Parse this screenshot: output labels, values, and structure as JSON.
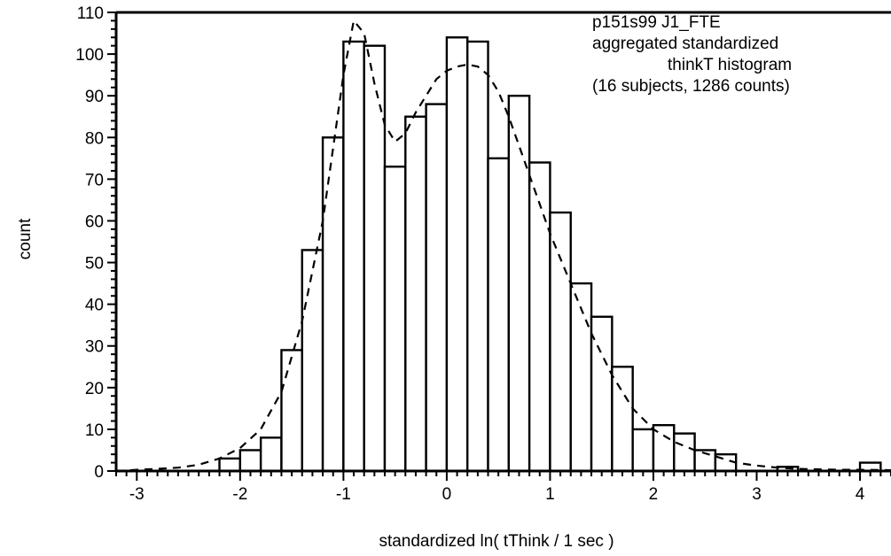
{
  "chart_data": {
    "type": "bar",
    "ylabel": "count",
    "xlabel": "standardized ln( tThink / 1 sec )",
    "annotation_lines": [
      "p151s99 J1_FTE",
      "aggregated standardized",
      "thinkT histogram",
      "(16 subjects, 1286 counts)"
    ],
    "xlim": [
      -3.2,
      4.3
    ],
    "ylim": [
      0,
      110
    ],
    "x_ticks": [
      -3,
      -2,
      -1,
      0,
      1,
      2,
      3,
      4
    ],
    "y_ticks": [
      0,
      10,
      20,
      30,
      40,
      50,
      60,
      70,
      80,
      90,
      100,
      110
    ],
    "bin_width": 0.2,
    "bins": [
      {
        "x0": -3.2,
        "count": 0
      },
      {
        "x0": -3.0,
        "count": 0
      },
      {
        "x0": -2.8,
        "count": 0
      },
      {
        "x0": -2.6,
        "count": 0
      },
      {
        "x0": -2.4,
        "count": 0
      },
      {
        "x0": -2.2,
        "count": 3
      },
      {
        "x0": -2.0,
        "count": 5
      },
      {
        "x0": -1.8,
        "count": 8
      },
      {
        "x0": -1.6,
        "count": 29
      },
      {
        "x0": -1.4,
        "count": 53
      },
      {
        "x0": -1.2,
        "count": 80
      },
      {
        "x0": -1.0,
        "count": 103
      },
      {
        "x0": -0.8,
        "count": 102
      },
      {
        "x0": -0.6,
        "count": 73
      },
      {
        "x0": -0.4,
        "count": 85
      },
      {
        "x0": -0.2,
        "count": 88
      },
      {
        "x0": 0.0,
        "count": 104
      },
      {
        "x0": 0.2,
        "count": 103
      },
      {
        "x0": 0.4,
        "count": 75
      },
      {
        "x0": 0.6,
        "count": 90
      },
      {
        "x0": 0.8,
        "count": 74
      },
      {
        "x0": 1.0,
        "count": 62
      },
      {
        "x0": 1.2,
        "count": 45
      },
      {
        "x0": 1.4,
        "count": 37
      },
      {
        "x0": 1.6,
        "count": 25
      },
      {
        "x0": 1.8,
        "count": 10
      },
      {
        "x0": 2.0,
        "count": 11
      },
      {
        "x0": 2.2,
        "count": 9
      },
      {
        "x0": 2.4,
        "count": 5
      },
      {
        "x0": 2.6,
        "count": 4
      },
      {
        "x0": 2.8,
        "count": 0
      },
      {
        "x0": 3.0,
        "count": 0
      },
      {
        "x0": 3.2,
        "count": 1
      },
      {
        "x0": 3.4,
        "count": 0
      },
      {
        "x0": 3.6,
        "count": 0
      },
      {
        "x0": 3.8,
        "count": 0
      },
      {
        "x0": 4.0,
        "count": 2
      },
      {
        "x0": 4.2,
        "count": 0
      }
    ],
    "fit_curve": {
      "style": "dashed",
      "points": [
        [
          -3.2,
          0
        ],
        [
          -3.0,
          0.3
        ],
        [
          -2.8,
          0.5
        ],
        [
          -2.6,
          0.8
        ],
        [
          -2.4,
          1.5
        ],
        [
          -2.2,
          3
        ],
        [
          -2.0,
          5.5
        ],
        [
          -1.8,
          10
        ],
        [
          -1.6,
          19
        ],
        [
          -1.4,
          36
        ],
        [
          -1.2,
          60
        ],
        [
          -1.0,
          95
        ],
        [
          -0.9,
          108
        ],
        [
          -0.8,
          105
        ],
        [
          -0.7,
          93
        ],
        [
          -0.6,
          83
        ],
        [
          -0.5,
          79
        ],
        [
          -0.4,
          81
        ],
        [
          -0.3,
          86
        ],
        [
          -0.2,
          90
        ],
        [
          -0.1,
          94
        ],
        [
          0.0,
          96
        ],
        [
          0.1,
          97
        ],
        [
          0.2,
          97.5
        ],
        [
          0.3,
          97
        ],
        [
          0.4,
          95
        ],
        [
          0.5,
          91
        ],
        [
          0.6,
          85
        ],
        [
          0.7,
          78
        ],
        [
          0.8,
          71
        ],
        [
          0.9,
          64
        ],
        [
          1.0,
          57
        ],
        [
          1.2,
          45
        ],
        [
          1.4,
          33
        ],
        [
          1.6,
          23
        ],
        [
          1.8,
          15
        ],
        [
          2.0,
          10
        ],
        [
          2.2,
          7
        ],
        [
          2.4,
          5
        ],
        [
          2.6,
          3.5
        ],
        [
          2.8,
          2
        ],
        [
          3.0,
          1.3
        ],
        [
          3.2,
          0.8
        ],
        [
          3.4,
          0.5
        ],
        [
          3.6,
          0.4
        ],
        [
          3.8,
          0.3
        ],
        [
          4.0,
          0.3
        ],
        [
          4.3,
          0.2
        ]
      ]
    }
  }
}
